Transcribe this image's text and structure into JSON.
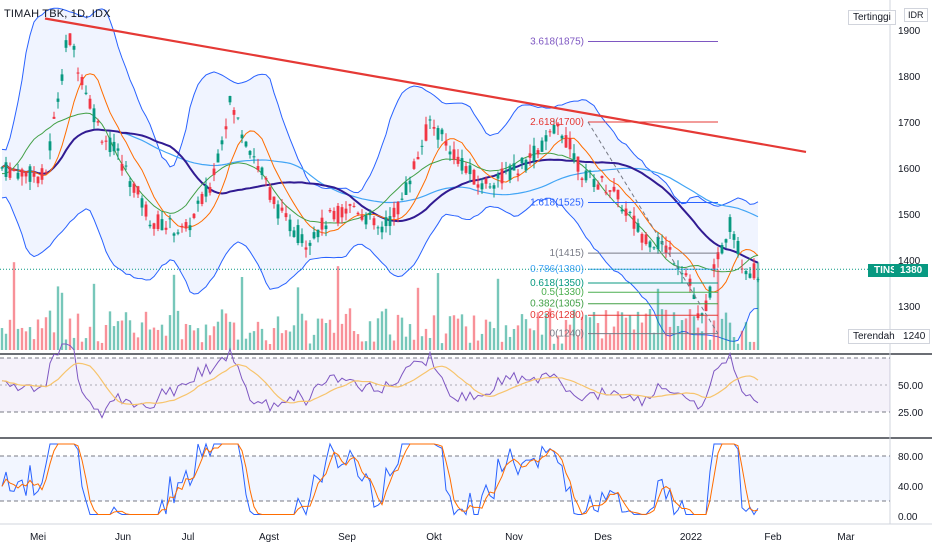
{
  "header": {
    "symbol": "TIMAH TBK, 1D, IDX",
    "currency": "IDR",
    "high_label": "Tertinggi",
    "low_label": "Terendah",
    "low_value": "1240",
    "ticker": "TINS",
    "last_price": "1380"
  },
  "axes": {
    "price_ticks": [
      "1900",
      "1800",
      "1700",
      "1600",
      "1500",
      "1400",
      "1300"
    ],
    "rsi_ticks": [
      "50.00",
      "25.00"
    ],
    "stoch_ticks": [
      "80.00",
      "40.00",
      "0.00"
    ],
    "time_ticks": [
      "Mei",
      "Jun",
      "Jul",
      "Agst",
      "Sep",
      "Okt",
      "Nov",
      "Des",
      "2022",
      "Feb",
      "Mar"
    ]
  },
  "fib_levels": [
    {
      "label": "3.618(1875)",
      "color": "#7e57c2"
    },
    {
      "label": "2.618(1700)",
      "color": "#e53935"
    },
    {
      "label": "1.618(1525)",
      "color": "#2962ff"
    },
    {
      "label": "1(1415)",
      "color": "#787b86"
    },
    {
      "label": "0.786(1380)",
      "color": "#42a5f5"
    },
    {
      "label": "0.618(1350)",
      "color": "#089981"
    },
    {
      "label": "0.5(1330)",
      "color": "#4caf50"
    },
    {
      "label": "0.382(1305)",
      "color": "#43a047"
    },
    {
      "label": "0.236(1280)",
      "color": "#e53935"
    },
    {
      "label": "0(1240)",
      "color": "#787b86"
    }
  ],
  "chart_data": {
    "type": "candlestick",
    "x": [
      "Mei",
      "Jun",
      "Jul",
      "Agst",
      "Sep",
      "Okt",
      "Nov",
      "Des",
      "2022"
    ],
    "close": [
      1800,
      1560,
      1460,
      1700,
      1430,
      1480,
      1700,
      1640,
      1380
    ],
    "ylim": [
      1240,
      1930
    ],
    "fib_values": [
      1875,
      1700,
      1525,
      1415,
      1380,
      1350,
      1330,
      1305,
      1280,
      1240
    ],
    "last_price": 1380,
    "indicators": [
      "Bollinger Bands",
      "Moving Averages",
      "Volume",
      "RSI",
      "Stochastic"
    ],
    "colors": {
      "up": "#089981",
      "down": "#f23645",
      "trendline": "#e53935",
      "rsi": "#7e57c2",
      "stoch_k": "#2962ff",
      "stoch_d": "#ff6d00"
    }
  }
}
